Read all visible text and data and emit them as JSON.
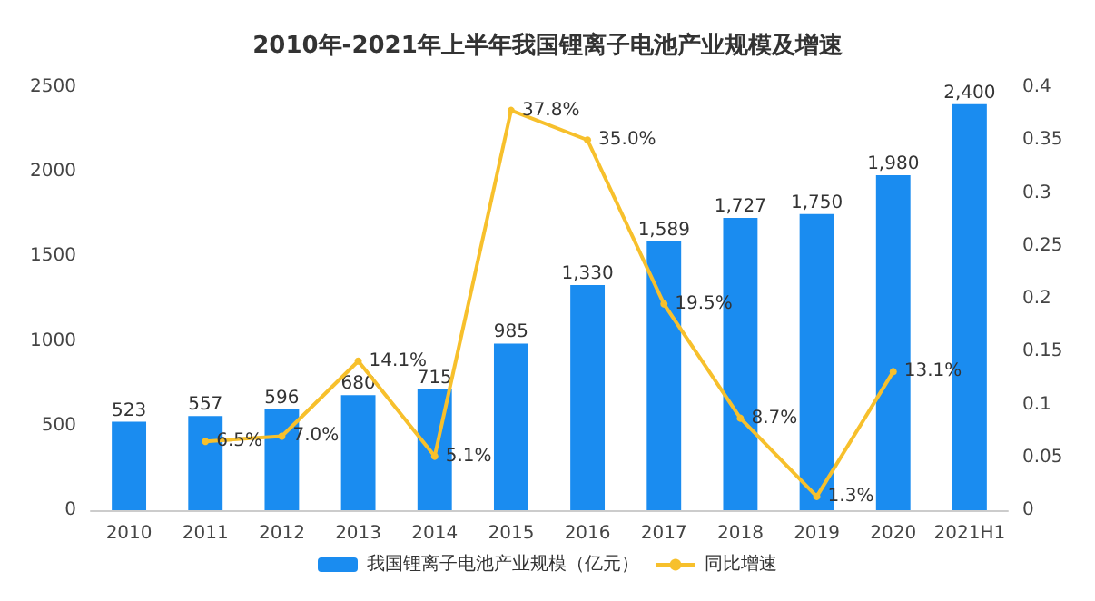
{
  "chart_data": {
    "type": "bar",
    "title": "2010年-2021年上半年我国锂离子电池产业规模及增速",
    "categories": [
      "2010",
      "2011",
      "2012",
      "2013",
      "2014",
      "2015",
      "2016",
      "2017",
      "2018",
      "2019",
      "2020",
      "2021H1"
    ],
    "series": [
      {
        "name": "我国锂离子电池产业规模（亿元）",
        "color": "#1a8cf0",
        "values": [
          523,
          557,
          596,
          680,
          715,
          985,
          1330,
          1589,
          1727,
          1750,
          1980,
          2400
        ],
        "value_labels": [
          "523",
          "557",
          "596",
          "680",
          "715",
          "985",
          "1,330",
          "1,589",
          "1,727",
          "1,750",
          "1,980",
          "2,400"
        ]
      },
      {
        "name": "同比增速",
        "type": "line",
        "axis": "y2",
        "color": "#f7c02c",
        "marker": "circle",
        "values": [
          null,
          0.065,
          0.07,
          0.141,
          0.051,
          0.378,
          0.35,
          0.195,
          0.087,
          0.013,
          0.131,
          null
        ],
        "value_labels": [
          null,
          "6.5%",
          "7.0%",
          "14.1%",
          "5.1%",
          "37.8%",
          "35.0%",
          "19.5%",
          "8.7%",
          "1.3%",
          "13.1%",
          null
        ]
      }
    ],
    "ylim": [
      0,
      2500
    ],
    "yticks": [
      0,
      500,
      1000,
      1500,
      2000,
      2500
    ],
    "y2lim": [
      0,
      0.4
    ],
    "y2ticks": [
      0,
      0.05,
      0.1,
      0.15,
      0.2,
      0.25,
      0.3,
      0.35,
      0.4
    ],
    "legend": "bottom",
    "grid": false
  }
}
